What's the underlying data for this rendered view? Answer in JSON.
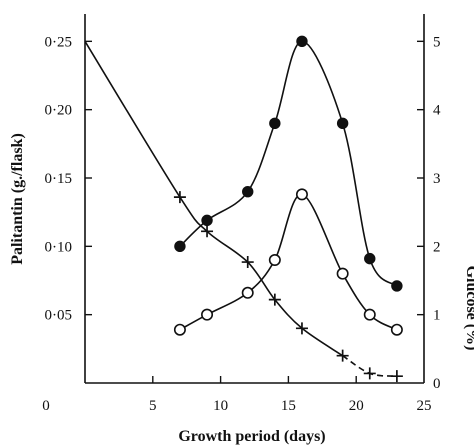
{
  "chart_data": {
    "type": "line",
    "xlabel": "Growth period (days)",
    "ylabel_left": "Palitantin (g./flask)",
    "ylabel_right": "Glucose (%)",
    "xlim": [
      0,
      25
    ],
    "ylim_left": [
      0,
      0.27
    ],
    "ylim_right": [
      0,
      5.4
    ],
    "x_ticks": [
      0,
      5,
      10,
      15,
      20,
      25
    ],
    "x_tick_labels": [
      "0",
      "5",
      "10",
      "15",
      "20",
      "25"
    ],
    "y_left_ticks": [
      0.05,
      0.1,
      0.15,
      0.2,
      0.25
    ],
    "y_left_tick_labels": [
      "0·05",
      "0·10",
      "0·15",
      "0·20",
      "0·25"
    ],
    "y_right_ticks": [
      0,
      1,
      2,
      3,
      4,
      5
    ],
    "y_right_tick_labels": [
      "0",
      "1",
      "2",
      "3",
      "4",
      "5"
    ],
    "grid": false,
    "series": [
      {
        "axis": "left",
        "marker": "filled-circle",
        "points": [
          [
            7,
            0.1
          ],
          [
            9,
            0.119
          ],
          [
            12,
            0.14
          ],
          [
            14,
            0.19
          ],
          [
            16,
            0.25
          ],
          [
            19,
            0.19
          ],
          [
            21,
            0.091
          ],
          [
            23,
            0.071
          ]
        ]
      },
      {
        "axis": "left",
        "marker": "open-circle",
        "points": [
          [
            7,
            0.039
          ],
          [
            9,
            0.05
          ],
          [
            12,
            0.066
          ],
          [
            14,
            0.09
          ],
          [
            16,
            0.138
          ],
          [
            19,
            0.08
          ],
          [
            21,
            0.05
          ],
          [
            23,
            0.039
          ]
        ]
      },
      {
        "axis": "right",
        "marker": "plus",
        "curve_start": [
          0,
          5.0
        ],
        "points": [
          [
            7,
            2.72
          ],
          [
            9,
            2.22
          ],
          [
            12,
            1.77
          ],
          [
            14,
            1.22
          ],
          [
            16,
            0.8
          ],
          [
            19,
            0.4
          ],
          [
            21,
            0.14
          ],
          [
            23,
            0.1
          ]
        ]
      }
    ]
  }
}
